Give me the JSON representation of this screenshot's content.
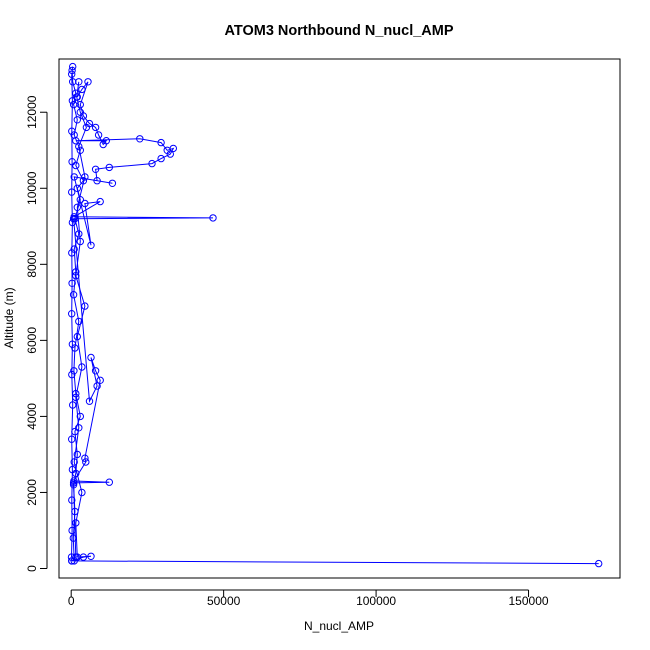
{
  "chart_data": {
    "type": "scatter",
    "title": "ATOM3 Northbound N_nucl_AMP",
    "xlabel": "N_nucl_AMP",
    "ylabel": "Altitude (m)",
    "xlim": [
      -4000,
      180000
    ],
    "ylim": [
      -250,
      13400
    ],
    "xticks": [
      0,
      50000,
      100000,
      150000
    ],
    "xtick_labels": [
      "0",
      "50000",
      "100000",
      "150000"
    ],
    "yticks": [
      0,
      2000,
      4000,
      6000,
      8000,
      10000,
      12000
    ],
    "ytick_labels": [
      "0",
      "2000",
      "4000",
      "6000",
      "8000",
      "10000",
      "12000"
    ],
    "grid": false,
    "legend": "none",
    "style": {
      "line_color": "#0000ff",
      "marker": "open-circle",
      "frame_color": "#000000",
      "text_color": "#000000"
    },
    "series": [
      {
        "points": [
          [
            1000,
            200
          ],
          [
            700,
            800
          ],
          [
            1200,
            1500
          ],
          [
            800,
            2200
          ],
          [
            1500,
            2500
          ],
          [
            2000,
            3000
          ],
          [
            1200,
            3600
          ],
          [
            3000,
            4000
          ],
          [
            1500,
            4600
          ],
          [
            900,
            5200
          ],
          [
            1200,
            5800
          ],
          [
            2500,
            6500
          ],
          [
            800,
            7200
          ],
          [
            1500,
            7800
          ],
          [
            1000,
            8400
          ],
          [
            2500,
            8800
          ],
          [
            1200,
            9200
          ],
          [
            3000,
            9700
          ],
          [
            2000,
            10000
          ],
          [
            4000,
            10200
          ],
          [
            1500,
            10600
          ],
          [
            3000,
            11000
          ],
          [
            1000,
            11400
          ],
          [
            2000,
            11800
          ],
          [
            800,
            12200
          ],
          [
            1500,
            12500
          ],
          [
            500,
            12800
          ],
          [
            300,
            13100
          ],
          [
            500,
            13200
          ]
        ]
      },
      {
        "points": [
          [
            100,
            300
          ],
          [
            300,
            1000
          ],
          [
            200,
            1800
          ],
          [
            400,
            2600
          ],
          [
            150,
            3400
          ],
          [
            500,
            4300
          ],
          [
            200,
            5100
          ],
          [
            400,
            5900
          ],
          [
            150,
            6700
          ],
          [
            300,
            7500
          ],
          [
            200,
            8300
          ],
          [
            400,
            9100
          ],
          [
            150,
            9900
          ],
          [
            300,
            10700
          ],
          [
            200,
            11500
          ],
          [
            400,
            12300
          ],
          [
            150,
            13000
          ]
        ]
      },
      {
        "points": [
          [
            2000,
            300
          ],
          [
            1500,
            1200
          ],
          [
            3500,
            2000
          ],
          [
            1000,
            2800
          ],
          [
            2500,
            3700
          ],
          [
            1500,
            4500
          ],
          [
            3500,
            5300
          ],
          [
            2000,
            6100
          ],
          [
            4500,
            6900
          ],
          [
            1500,
            7700
          ],
          [
            3000,
            8600
          ],
          [
            2000,
            9500
          ],
          [
            4500,
            10300
          ],
          [
            2500,
            11100
          ],
          [
            5000,
            11600
          ],
          [
            3000,
            12000
          ],
          [
            1800,
            12400
          ],
          [
            2500,
            12800
          ]
        ]
      },
      {
        "points": [
          [
            200,
            200
          ],
          [
            173000,
            130
          ],
          [
            200,
            200
          ],
          [
            4000,
            300
          ],
          [
            6500,
            320
          ],
          [
            1500,
            300
          ],
          [
            800,
            2250
          ],
          [
            12500,
            2270
          ],
          [
            900,
            2300
          ],
          [
            4800,
            2800
          ],
          [
            4500,
            2900
          ],
          [
            9500,
            4950
          ],
          [
            8000,
            5200
          ],
          [
            6500,
            5550
          ],
          [
            8500,
            4800
          ],
          [
            6000,
            4400
          ],
          [
            800,
            9200
          ],
          [
            46500,
            9220
          ],
          [
            1000,
            9250
          ],
          [
            9500,
            9650
          ],
          [
            4500,
            9600
          ],
          [
            6500,
            8500
          ],
          [
            1000,
            10300
          ],
          [
            13500,
            10130
          ],
          [
            8500,
            10200
          ],
          [
            8000,
            10500
          ],
          [
            12500,
            10550
          ],
          [
            26500,
            10650
          ],
          [
            29500,
            10780
          ],
          [
            32500,
            10900
          ],
          [
            33500,
            11050
          ],
          [
            31500,
            11000
          ],
          [
            29500,
            11200
          ],
          [
            22500,
            11300
          ],
          [
            1500,
            11250
          ],
          [
            11500,
            11250
          ],
          [
            10500,
            11150
          ],
          [
            9000,
            11400
          ],
          [
            8000,
            11600
          ],
          [
            6000,
            11700
          ],
          [
            4000,
            11900
          ],
          [
            3000,
            12200
          ],
          [
            5500,
            12800
          ],
          [
            3500,
            12600
          ],
          [
            2000,
            12400
          ]
        ]
      }
    ]
  }
}
